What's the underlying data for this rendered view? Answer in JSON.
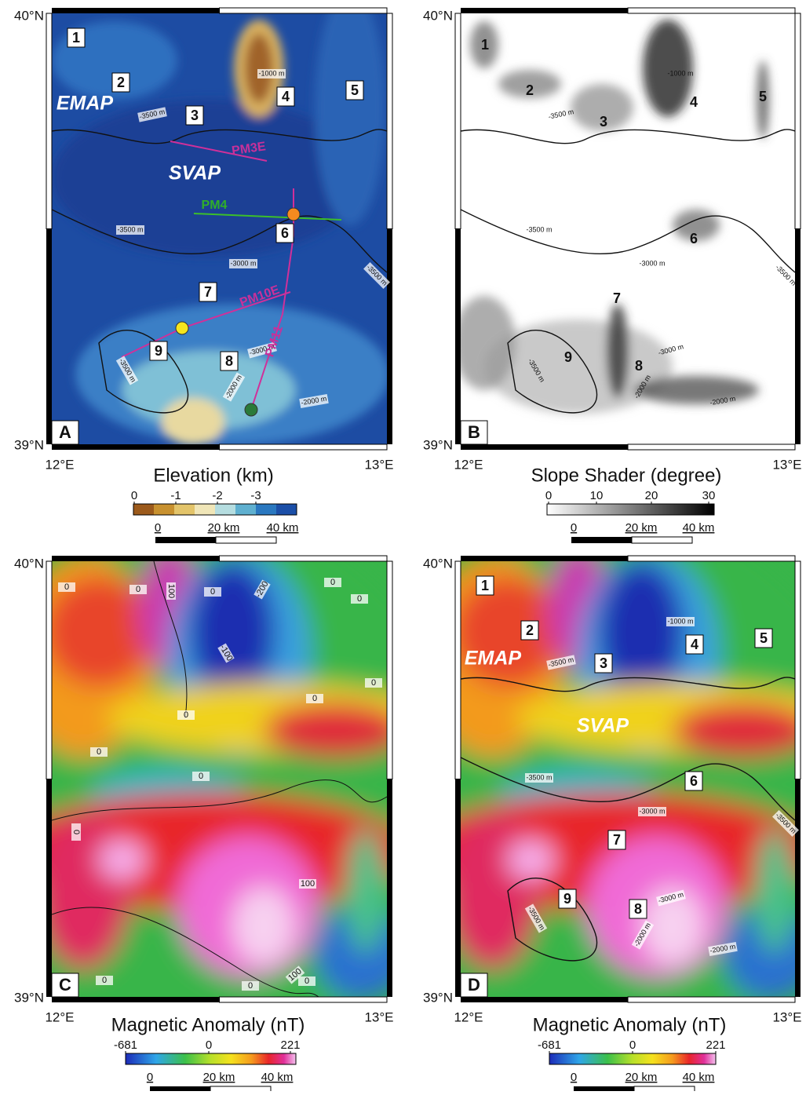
{
  "panels": [
    {
      "letter": "A",
      "lat_labels": [
        "40°N",
        "39°N"
      ],
      "lon_labels": [
        "12°E",
        "13°E"
      ],
      "colorbar_title": "Elevation (km)",
      "colorbar_ticks": [
        "0",
        "-1",
        "-2",
        "-3"
      ],
      "scale_ticks": [
        "0",
        "20 km",
        "40 km"
      ],
      "sites": [
        "1",
        "2",
        "3",
        "4",
        "5",
        "6",
        "7",
        "8",
        "9"
      ],
      "regions": [
        "EMAP",
        "SVAP"
      ],
      "profiles": [
        "PM3E",
        "PM4",
        "PM10E",
        "PM11"
      ],
      "contour_labels": [
        "-1000 m",
        "-3500 m",
        "-3500 m",
        "-3000 m",
        "-3500 m",
        "-3000 m",
        "-3500 m",
        "-2000 m",
        "-2000 m"
      ]
    },
    {
      "letter": "B",
      "lat_labels": [
        "40°N",
        "39°N"
      ],
      "lon_labels": [
        "12°E",
        "13°E"
      ],
      "colorbar_title": "Slope Shader (degree)",
      "colorbar_ticks": [
        "0",
        "10",
        "20",
        "30"
      ],
      "scale_ticks": [
        "0",
        "20 km",
        "40 km"
      ],
      "sites": [
        "1",
        "2",
        "3",
        "4",
        "5",
        "6",
        "7",
        "8",
        "9"
      ],
      "contour_labels": [
        "-1000 m",
        "-3500 m",
        "-3500 m",
        "-3000 m",
        "-3500 m",
        "-3000 m",
        "-3500 m",
        "-2000 m",
        "-2000 m"
      ]
    },
    {
      "letter": "C",
      "lat_labels": [
        "40°N",
        "39°N"
      ],
      "lon_labels": [
        "12°E",
        "13°E"
      ],
      "colorbar_title": "Magnetic Anomaly (nT)",
      "colorbar_ticks": [
        "-681",
        "0",
        "221"
      ],
      "scale_ticks": [
        "0",
        "20 km",
        "40 km"
      ],
      "contour_labels": [
        "0",
        "0",
        "100",
        "-200",
        "0",
        "0",
        "0",
        "-100",
        "0",
        "0",
        "0",
        "0",
        "0",
        "0",
        "100",
        "0",
        "0",
        "100",
        "0"
      ]
    },
    {
      "letter": "D",
      "lat_labels": [
        "40°N",
        "39°N"
      ],
      "lon_labels": [
        "12°E",
        "13°E"
      ],
      "colorbar_title": "Magnetic Anomaly (nT)",
      "colorbar_ticks": [
        "-681",
        "0",
        "221"
      ],
      "scale_ticks": [
        "0",
        "20 km",
        "40 km"
      ],
      "sites": [
        "1",
        "2",
        "3",
        "4",
        "5",
        "6",
        "7",
        "8",
        "9"
      ],
      "regions": [
        "EMAP",
        "SVAP"
      ],
      "contour_labels": [
        "-1000 m",
        "-3500 m",
        "-3500 m",
        "-3000 m",
        "-3500 m",
        "-3000 m",
        "-3500 m",
        "-2000 m",
        "-2000 m"
      ]
    }
  ]
}
